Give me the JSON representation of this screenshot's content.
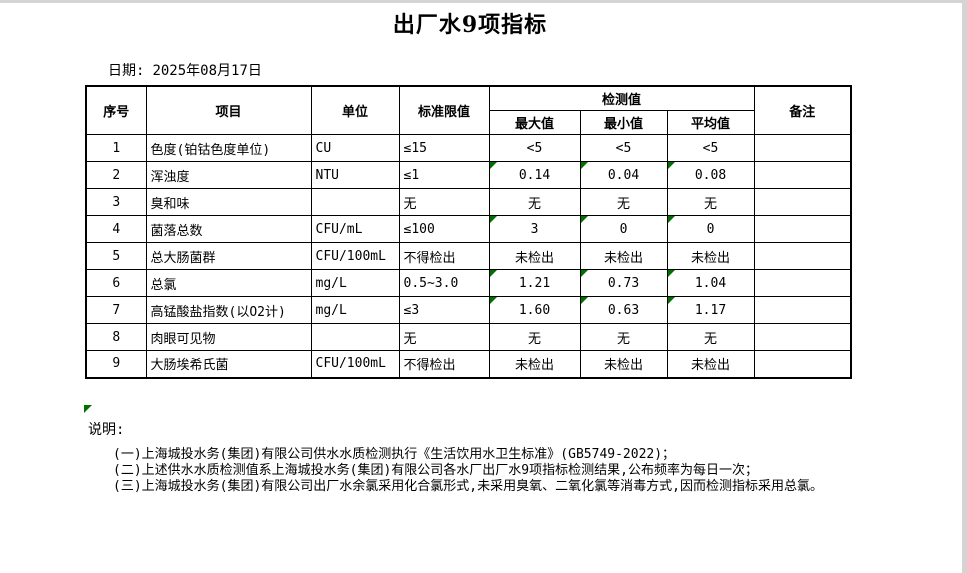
{
  "page": {
    "title": "出厂水9项指标",
    "date_label": "日期:",
    "date_value": "2025年08月17日"
  },
  "table": {
    "headers": {
      "index": "序号",
      "item": "项目",
      "unit": "单位",
      "limit": "标准限值",
      "detection": "检测值",
      "max": "最大值",
      "min": "最小值",
      "avg": "平均值",
      "remark": "备注"
    },
    "rows": [
      {
        "index": "1",
        "item": "色度(铂钴色度单位)",
        "unit": "CU",
        "limit": "≤15",
        "max": "<5",
        "min": "<5",
        "avg": "<5",
        "remark": "",
        "flagged": false
      },
      {
        "index": "2",
        "item": "浑浊度",
        "unit": "NTU",
        "limit": "≤1",
        "max": "0.14",
        "min": "0.04",
        "avg": "0.08",
        "remark": "",
        "flagged": true
      },
      {
        "index": "3",
        "item": "臭和味",
        "unit": "",
        "limit": "无",
        "max": "无",
        "min": "无",
        "avg": "无",
        "remark": "",
        "flagged": false
      },
      {
        "index": "4",
        "item": "菌落总数",
        "unit": "CFU/mL",
        "limit": "≤100",
        "max": "3",
        "min": "0",
        "avg": "0",
        "remark": "",
        "flagged": true
      },
      {
        "index": "5",
        "item": "总大肠菌群",
        "unit": "CFU/100mL",
        "limit": "不得检出",
        "max": "未检出",
        "min": "未检出",
        "avg": "未检出",
        "remark": "",
        "flagged": false
      },
      {
        "index": "6",
        "item": "总氯",
        "unit": "mg/L",
        "limit": "0.5~3.0",
        "max": "1.21",
        "min": "0.73",
        "avg": "1.04",
        "remark": "",
        "flagged": true
      },
      {
        "index": "7",
        "item": "高锰酸盐指数(以O2计)",
        "unit": "mg/L",
        "limit": "≤3",
        "max": "1.60",
        "min": "0.63",
        "avg": "1.17",
        "remark": "",
        "flagged": true
      },
      {
        "index": "8",
        "item": "肉眼可见物",
        "unit": "",
        "limit": "无",
        "max": "无",
        "min": "无",
        "avg": "无",
        "remark": "",
        "flagged": false
      },
      {
        "index": "9",
        "item": "大肠埃希氏菌",
        "unit": "CFU/100mL",
        "limit": "不得检出",
        "max": "未检出",
        "min": "未检出",
        "avg": "未检出",
        "remark": "",
        "flagged": false
      }
    ]
  },
  "notes": {
    "label": "说明:",
    "lines": [
      "(一)上海城投水务(集团)有限公司供水水质检测执行《生活饮用水卫生标准》(GB5749-2022)；",
      "(二)上述供水水质检测值系上海城投水务(集团)有限公司各水厂出厂水9项指标检测结果,公布频率为每日一次；",
      "(三)上海城投水务(集团)有限公司出厂水余氯采用化合氯形式,未采用臭氧、二氧化氯等消毒方式,因而检测指标采用总氯。"
    ]
  }
}
